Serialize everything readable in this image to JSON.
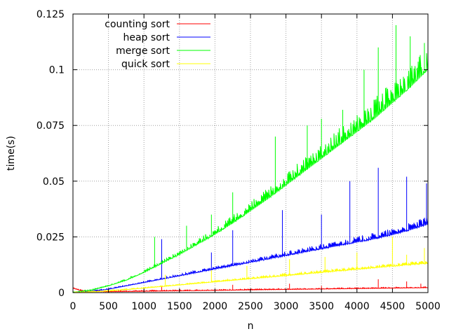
{
  "chart_data": {
    "type": "line",
    "title": "",
    "xlabel": "n",
    "ylabel": "time(s)",
    "xlim": [
      0,
      5000
    ],
    "ylim": [
      0,
      0.125
    ],
    "xticks": [
      0,
      500,
      1000,
      1500,
      2000,
      2500,
      3000,
      3500,
      4000,
      4500,
      5000
    ],
    "yticks": [
      0,
      0.025,
      0.05,
      0.075,
      0.1,
      0.125
    ],
    "xtick_labels": [
      "0",
      "500",
      "1000",
      "1500",
      "2000",
      "2500",
      "3000",
      "3500",
      "4000",
      "4500",
      "5000"
    ],
    "ytick_labels": [
      "0",
      "0.025",
      "0.05",
      "0.075",
      "0.1",
      "0.125"
    ],
    "grid": true,
    "legend_position": "top-left",
    "series": [
      {
        "name": "counting sort",
        "color": "#ff0000",
        "x": [
          0,
          100,
          200,
          500,
          1000,
          1500,
          2000,
          2500,
          3000,
          3500,
          4000,
          4500,
          5000
        ],
        "y": [
          0.002,
          0.001,
          0.0005,
          0.0004,
          0.0006,
          0.0008,
          0.001,
          0.0012,
          0.0014,
          0.0016,
          0.0018,
          0.002,
          0.0022
        ],
        "spikes": [
          [
            1250,
            0.003
          ],
          [
            2250,
            0.0035
          ],
          [
            3050,
            0.004
          ],
          [
            3500,
            0.003
          ],
          [
            4300,
            0.006
          ],
          [
            4700,
            0.005
          ],
          [
            4900,
            0.004
          ]
        ]
      },
      {
        "name": "heap sort",
        "color": "#0000ff",
        "x": [
          0,
          250,
          500,
          750,
          1000,
          1250,
          1500,
          1750,
          2000,
          2250,
          2500,
          2750,
          3000,
          3250,
          3500,
          3750,
          4000,
          4250,
          4500,
          4750,
          5000
        ],
        "y": [
          0,
          0.0005,
          0.0015,
          0.003,
          0.0045,
          0.006,
          0.0075,
          0.009,
          0.0105,
          0.012,
          0.0135,
          0.015,
          0.0165,
          0.018,
          0.0195,
          0.021,
          0.0225,
          0.024,
          0.0258,
          0.028,
          0.0305
        ],
        "spikes": [
          [
            1250,
            0.024
          ],
          [
            1950,
            0.018
          ],
          [
            2250,
            0.028
          ],
          [
            2950,
            0.037
          ],
          [
            3500,
            0.035
          ],
          [
            3900,
            0.05
          ],
          [
            4300,
            0.056
          ],
          [
            4700,
            0.052
          ],
          [
            4980,
            0.049
          ]
        ]
      },
      {
        "name": "merge sort",
        "color": "#00ff00",
        "x": [
          0,
          250,
          500,
          750,
          1000,
          1250,
          1500,
          1750,
          2000,
          2250,
          2500,
          2750,
          3000,
          3250,
          3500,
          3750,
          4000,
          4250,
          4500,
          4750,
          5000
        ],
        "y": [
          0,
          0.001,
          0.003,
          0.0055,
          0.009,
          0.013,
          0.017,
          0.0215,
          0.026,
          0.031,
          0.0365,
          0.042,
          0.048,
          0.054,
          0.06,
          0.066,
          0.072,
          0.078,
          0.085,
          0.092,
          0.1
        ],
        "spikes": [
          [
            1150,
            0.025
          ],
          [
            1600,
            0.03
          ],
          [
            1950,
            0.035
          ],
          [
            2250,
            0.045
          ],
          [
            2850,
            0.07
          ],
          [
            3300,
            0.075
          ],
          [
            3500,
            0.078
          ],
          [
            3800,
            0.082
          ],
          [
            4100,
            0.1
          ],
          [
            4300,
            0.11
          ],
          [
            4550,
            0.12
          ],
          [
            4750,
            0.115
          ],
          [
            4950,
            0.112
          ]
        ]
      },
      {
        "name": "quick sort",
        "color": "#ffff00",
        "x": [
          0,
          250,
          500,
          750,
          1000,
          1250,
          1500,
          1750,
          2000,
          2250,
          2500,
          2750,
          3000,
          3250,
          3500,
          3750,
          4000,
          4250,
          4500,
          4750,
          5000
        ],
        "y": [
          0,
          0.0002,
          0.0007,
          0.0013,
          0.002,
          0.0027,
          0.0034,
          0.0041,
          0.0048,
          0.0055,
          0.0062,
          0.0069,
          0.0076,
          0.0083,
          0.009,
          0.0097,
          0.0104,
          0.0111,
          0.0118,
          0.0124,
          0.013
        ],
        "spikes": [
          [
            1300,
            0.008
          ],
          [
            1950,
            0.01
          ],
          [
            2450,
            0.012
          ],
          [
            3050,
            0.015
          ],
          [
            3550,
            0.016
          ],
          [
            4000,
            0.018
          ],
          [
            4500,
            0.025
          ],
          [
            4700,
            0.017
          ],
          [
            4950,
            0.02
          ]
        ]
      }
    ]
  }
}
